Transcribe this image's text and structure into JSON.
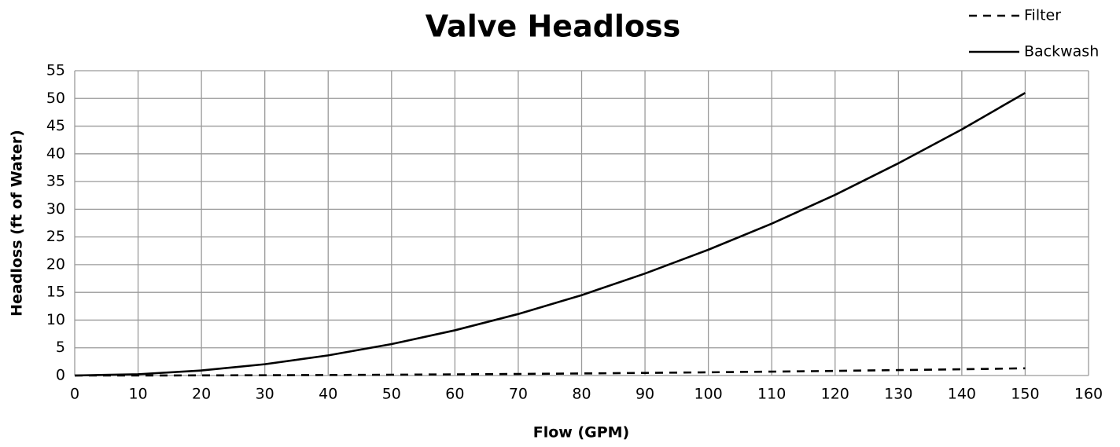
{
  "chart_data": {
    "type": "line",
    "title": "Valve Headloss",
    "x_label": "Flow (GPM)",
    "y_label": "Headloss (ft of Water)",
    "x": [
      0,
      10,
      20,
      30,
      40,
      50,
      60,
      70,
      80,
      90,
      100,
      110,
      120,
      130,
      140,
      150
    ],
    "series": [
      {
        "name": "Filter",
        "color": "#000000",
        "dash": true,
        "values": [
          0,
          0.006,
          0.023,
          0.052,
          0.09,
          0.14,
          0.21,
          0.28,
          0.37,
          0.47,
          0.58,
          0.7,
          0.83,
          0.98,
          1.13,
          1.3
        ]
      },
      {
        "name": "Backwash",
        "color": "#000000",
        "dash": false,
        "values": [
          0,
          0.23,
          0.91,
          2.04,
          3.63,
          5.67,
          8.16,
          11.1,
          14.5,
          18.4,
          22.7,
          27.4,
          32.6,
          38.3,
          44.4,
          51
        ]
      }
    ],
    "xlim": [
      0,
      160
    ],
    "xticks": [
      0,
      10,
      20,
      30,
      40,
      50,
      60,
      70,
      80,
      90,
      100,
      110,
      120,
      130,
      140,
      150,
      160
    ],
    "ylim": [
      0,
      55
    ],
    "yticks": [
      0,
      5,
      10,
      15,
      20,
      25,
      30,
      35,
      40,
      45,
      50,
      55
    ],
    "grid": true,
    "legend": "upper right"
  }
}
